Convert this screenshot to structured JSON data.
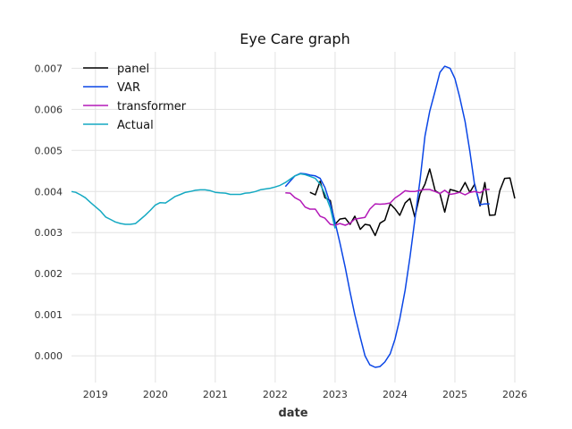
{
  "chart_data": {
    "type": "line",
    "title": "Eye Care graph",
    "xlabel": "date",
    "ylabel": "",
    "xlim": [
      2018.6,
      2026.0
    ],
    "ylim": [
      -0.00065,
      0.0074
    ],
    "x_ticks": [
      2019,
      2020,
      2021,
      2022,
      2023,
      2024,
      2025,
      2026
    ],
    "x_tick_labels": [
      "2019",
      "2020",
      "2021",
      "2022",
      "2023",
      "2024",
      "2025",
      "2026"
    ],
    "y_ticks": [
      0.0,
      0.001,
      0.002,
      0.003,
      0.004,
      0.005,
      0.006,
      0.007
    ],
    "y_tick_labels": [
      "0.000",
      "0.001",
      "0.002",
      "0.003",
      "0.004",
      "0.005",
      "0.006",
      "0.007"
    ],
    "grid": true,
    "legend_position": "top-left",
    "series": [
      {
        "name": "panel",
        "color": "#000000",
        "x": [
          2022.58,
          2022.67,
          2022.75,
          2022.83,
          2022.92,
          2023.0,
          2023.08,
          2023.17,
          2023.25,
          2023.33,
          2023.42,
          2023.5,
          2023.58,
          2023.67,
          2023.75,
          2023.83,
          2023.92,
          2024.0,
          2024.08,
          2024.17,
          2024.25,
          2024.33,
          2024.42,
          2024.5,
          2024.58,
          2024.67,
          2024.75,
          2024.83,
          2024.92,
          2025.0,
          2025.08,
          2025.17,
          2025.25,
          2025.33,
          2025.42,
          2025.5,
          2025.58,
          2025.67,
          2025.75,
          2025.83,
          2025.92,
          2026.0
        ],
        "values": [
          0.00398,
          0.00392,
          0.00425,
          0.00385,
          0.00378,
          0.0032,
          0.00333,
          0.00335,
          0.0032,
          0.0034,
          0.00308,
          0.0032,
          0.00318,
          0.00293,
          0.00323,
          0.0033,
          0.0037,
          0.00358,
          0.00342,
          0.00372,
          0.00383,
          0.00338,
          0.00395,
          0.00418,
          0.00455,
          0.00402,
          0.00395,
          0.0035,
          0.00405,
          0.00402,
          0.00398,
          0.00422,
          0.00398,
          0.00418,
          0.00365,
          0.00422,
          0.00342,
          0.00343,
          0.00402,
          0.00432,
          0.00433,
          0.00383
        ]
      },
      {
        "name": "VAR",
        "color": "#0a46e6",
        "x": [
          2022.17,
          2022.25,
          2022.33,
          2022.42,
          2022.5,
          2022.58,
          2022.67,
          2022.75,
          2022.83,
          2022.92,
          2023.0,
          2023.08,
          2023.17,
          2023.25,
          2023.33,
          2023.42,
          2023.5,
          2023.58,
          2023.67,
          2023.75,
          2023.83,
          2023.92,
          2024.0,
          2024.08,
          2024.17,
          2024.25,
          2024.33,
          2024.42,
          2024.5,
          2024.58,
          2024.67,
          2024.75,
          2024.83,
          2024.92,
          2025.0,
          2025.08,
          2025.17,
          2025.25,
          2025.33,
          2025.42,
          2025.5,
          2025.58
        ],
        "values": [
          0.00412,
          0.00425,
          0.00438,
          0.00444,
          0.00443,
          0.0044,
          0.00438,
          0.00432,
          0.0041,
          0.0037,
          0.00325,
          0.00275,
          0.00215,
          0.00155,
          0.001,
          0.00045,
          0.0,
          -0.00022,
          -0.00028,
          -0.00026,
          -0.00015,
          5e-05,
          0.0004,
          0.0009,
          0.0016,
          0.0024,
          0.0033,
          0.0043,
          0.00535,
          0.00595,
          0.00645,
          0.0069,
          0.00705,
          0.007,
          0.00675,
          0.0063,
          0.0057,
          0.00498,
          0.00415,
          0.00368,
          0.0037,
          0.0037
        ]
      },
      {
        "name": "transformer",
        "color": "#b319b8",
        "x": [
          2022.17,
          2022.25,
          2022.33,
          2022.42,
          2022.5,
          2022.58,
          2022.67,
          2022.75,
          2022.83,
          2022.92,
          2023.0,
          2023.08,
          2023.17,
          2023.25,
          2023.33,
          2023.42,
          2023.5,
          2023.58,
          2023.67,
          2023.75,
          2023.83,
          2023.92,
          2024.0,
          2024.08,
          2024.17,
          2024.25,
          2024.33,
          2024.42,
          2024.5,
          2024.58,
          2024.67,
          2024.75,
          2024.83,
          2024.92,
          2025.0,
          2025.08,
          2025.17,
          2025.25,
          2025.33,
          2025.42,
          2025.5,
          2025.58
        ],
        "values": [
          0.00397,
          0.00396,
          0.00385,
          0.00378,
          0.00362,
          0.00357,
          0.00357,
          0.0034,
          0.00335,
          0.0032,
          0.00318,
          0.00322,
          0.00318,
          0.00323,
          0.00333,
          0.00335,
          0.00337,
          0.00357,
          0.0037,
          0.00369,
          0.0037,
          0.00372,
          0.00384,
          0.00392,
          0.00402,
          0.004,
          0.004,
          0.00403,
          0.00405,
          0.00405,
          0.004,
          0.00395,
          0.00403,
          0.00393,
          0.00395,
          0.00398,
          0.00392,
          0.00398,
          0.004,
          0.00397,
          0.00405,
          0.00405
        ]
      },
      {
        "name": "Actual",
        "color": "#14a9c2",
        "x": [
          2018.6,
          2018.67,
          2018.75,
          2018.83,
          2018.92,
          2019.0,
          2019.08,
          2019.17,
          2019.25,
          2019.33,
          2019.42,
          2019.5,
          2019.58,
          2019.67,
          2019.75,
          2019.83,
          2019.92,
          2020.0,
          2020.08,
          2020.17,
          2020.25,
          2020.33,
          2020.42,
          2020.5,
          2020.58,
          2020.67,
          2020.75,
          2020.83,
          2020.92,
          2021.0,
          2021.08,
          2021.17,
          2021.25,
          2021.33,
          2021.42,
          2021.5,
          2021.58,
          2021.67,
          2021.75,
          2021.83,
          2021.92,
          2022.0,
          2022.08,
          2022.17,
          2022.25,
          2022.33,
          2022.42,
          2022.5,
          2022.58,
          2022.67,
          2022.75,
          2022.83,
          2022.92,
          2023.0
        ],
        "values": [
          0.004,
          0.00398,
          0.00392,
          0.00385,
          0.00373,
          0.00363,
          0.00353,
          0.00338,
          0.00332,
          0.00326,
          0.00322,
          0.0032,
          0.0032,
          0.00322,
          0.00332,
          0.00342,
          0.00355,
          0.00367,
          0.00373,
          0.00372,
          0.0038,
          0.00388,
          0.00393,
          0.00398,
          0.004,
          0.00403,
          0.00404,
          0.00404,
          0.00402,
          0.00398,
          0.00397,
          0.00396,
          0.00393,
          0.00393,
          0.00393,
          0.00396,
          0.00397,
          0.004,
          0.00404,
          0.00406,
          0.00408,
          0.00411,
          0.00415,
          0.00422,
          0.0043,
          0.00438,
          0.00443,
          0.00441,
          0.00437,
          0.00432,
          0.00418,
          0.00395,
          0.0036,
          0.0031
        ]
      }
    ]
  }
}
